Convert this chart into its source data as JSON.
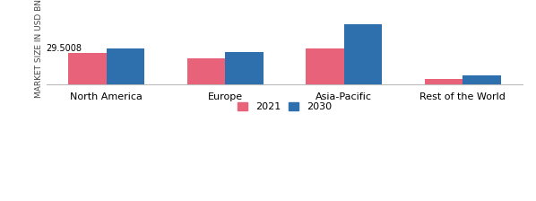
{
  "categories": [
    "North America",
    "Europe",
    "Asia-Pacific",
    "Rest of the World"
  ],
  "values_2021": [
    29.5008,
    25.0,
    34.0,
    5.0
  ],
  "values_2030": [
    34.5,
    31.0,
    58.0,
    8.0
  ],
  "color_2021": "#e8637a",
  "color_2030": "#2e6fad",
  "ylabel": "MARKET SIZE IN USD BN",
  "annotation_text": "29.5008",
  "legend_labels": [
    "2021",
    "2030"
  ],
  "bar_width": 0.32,
  "background_color": "#ffffff",
  "axis_label_fontsize": 6.5,
  "tick_fontsize": 8,
  "legend_fontsize": 8,
  "ylim_max": 68
}
